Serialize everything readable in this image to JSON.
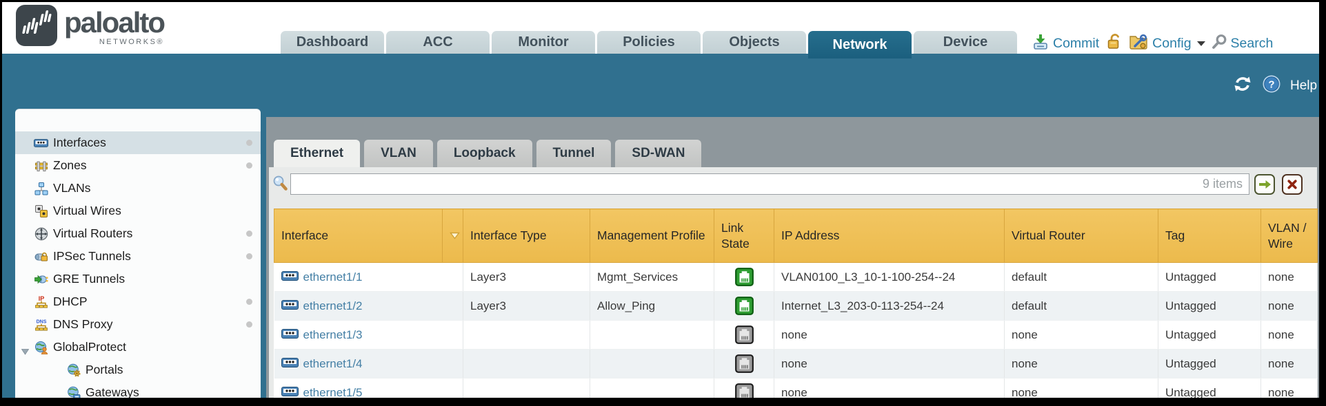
{
  "header": {
    "brand": {
      "name": "paloalto",
      "sub": "NETWORKS®"
    },
    "tabs": [
      {
        "label": "Dashboard",
        "active": false
      },
      {
        "label": "ACC",
        "active": false
      },
      {
        "label": "Monitor",
        "active": false
      },
      {
        "label": "Policies",
        "active": false
      },
      {
        "label": "Objects",
        "active": false
      },
      {
        "label": "Network",
        "active": true
      },
      {
        "label": "Device",
        "active": false
      }
    ],
    "utilities": {
      "commit": "Commit",
      "config": "Config",
      "search": "Search"
    }
  },
  "toolbar": {
    "help": "Help"
  },
  "sidebar": {
    "items": [
      {
        "label": "Interfaces",
        "icon": "interfaces-icon",
        "selected": true,
        "dot": true
      },
      {
        "label": "Zones",
        "icon": "zones-icon",
        "dot": true
      },
      {
        "label": "VLANs",
        "icon": "vlans-icon",
        "dot": false
      },
      {
        "label": "Virtual Wires",
        "icon": "virtual-wires-icon",
        "dot": false
      },
      {
        "label": "Virtual Routers",
        "icon": "virtual-routers-icon",
        "dot": true
      },
      {
        "label": "IPSec Tunnels",
        "icon": "ipsec-tunnels-icon",
        "dot": true
      },
      {
        "label": "GRE Tunnels",
        "icon": "gre-tunnels-icon",
        "dot": false
      },
      {
        "label": "DHCP",
        "icon": "dhcp-icon",
        "dot": true
      },
      {
        "label": "DNS Proxy",
        "icon": "dns-proxy-icon",
        "dot": true
      },
      {
        "label": "GlobalProtect",
        "icon": "globalprotect-icon",
        "expanded": true,
        "dot": false
      },
      {
        "label": "Portals",
        "icon": "portals-icon",
        "child": true,
        "dot": false
      },
      {
        "label": "Gateways",
        "icon": "gateways-icon",
        "child": true,
        "dot": false
      }
    ]
  },
  "main": {
    "tabs": [
      {
        "label": "Ethernet",
        "active": true
      },
      {
        "label": "VLAN",
        "active": false
      },
      {
        "label": "Loopback",
        "active": false
      },
      {
        "label": "Tunnel",
        "active": false
      },
      {
        "label": "SD-WAN",
        "active": false
      }
    ],
    "filter": {
      "value": "",
      "items_count": "9 items"
    },
    "table": {
      "columns": [
        "Interface",
        "Interface Type",
        "Management Profile",
        "Link State",
        "IP Address",
        "Virtual Router",
        "Tag",
        "VLAN / Wire"
      ],
      "rows": [
        {
          "interface": "ethernet1/1",
          "type": "Layer3",
          "profile": "Mgmt_Services",
          "link": "up",
          "ip": "VLAN0100_L3_10-1-100-254--24",
          "vr": "default",
          "tag": "Untagged",
          "vlan": "none"
        },
        {
          "interface": "ethernet1/2",
          "type": "Layer3",
          "profile": "Allow_Ping",
          "link": "up",
          "ip": "Internet_L3_203-0-113-254--24",
          "vr": "default",
          "tag": "Untagged",
          "vlan": "none"
        },
        {
          "interface": "ethernet1/3",
          "type": "",
          "profile": "",
          "link": "down",
          "ip": "none",
          "vr": "none",
          "tag": "Untagged",
          "vlan": "none"
        },
        {
          "interface": "ethernet1/4",
          "type": "",
          "profile": "",
          "link": "down",
          "ip": "none",
          "vr": "none",
          "tag": "Untagged",
          "vlan": "none"
        },
        {
          "interface": "ethernet1/5",
          "type": "",
          "profile": "",
          "link": "down",
          "ip": "none",
          "vr": "none",
          "tag": "Untagged",
          "vlan": "none"
        }
      ]
    }
  },
  "colors": {
    "teal_band": "#30708f",
    "tab_active": "#1d6480",
    "table_header_gold": "#ecba4c",
    "sorted_column_gold": "#f6df9d",
    "link_blue": "#447fa5",
    "link_up_green": "#2f9e33",
    "link_down_gray": "#9c9c9c"
  }
}
